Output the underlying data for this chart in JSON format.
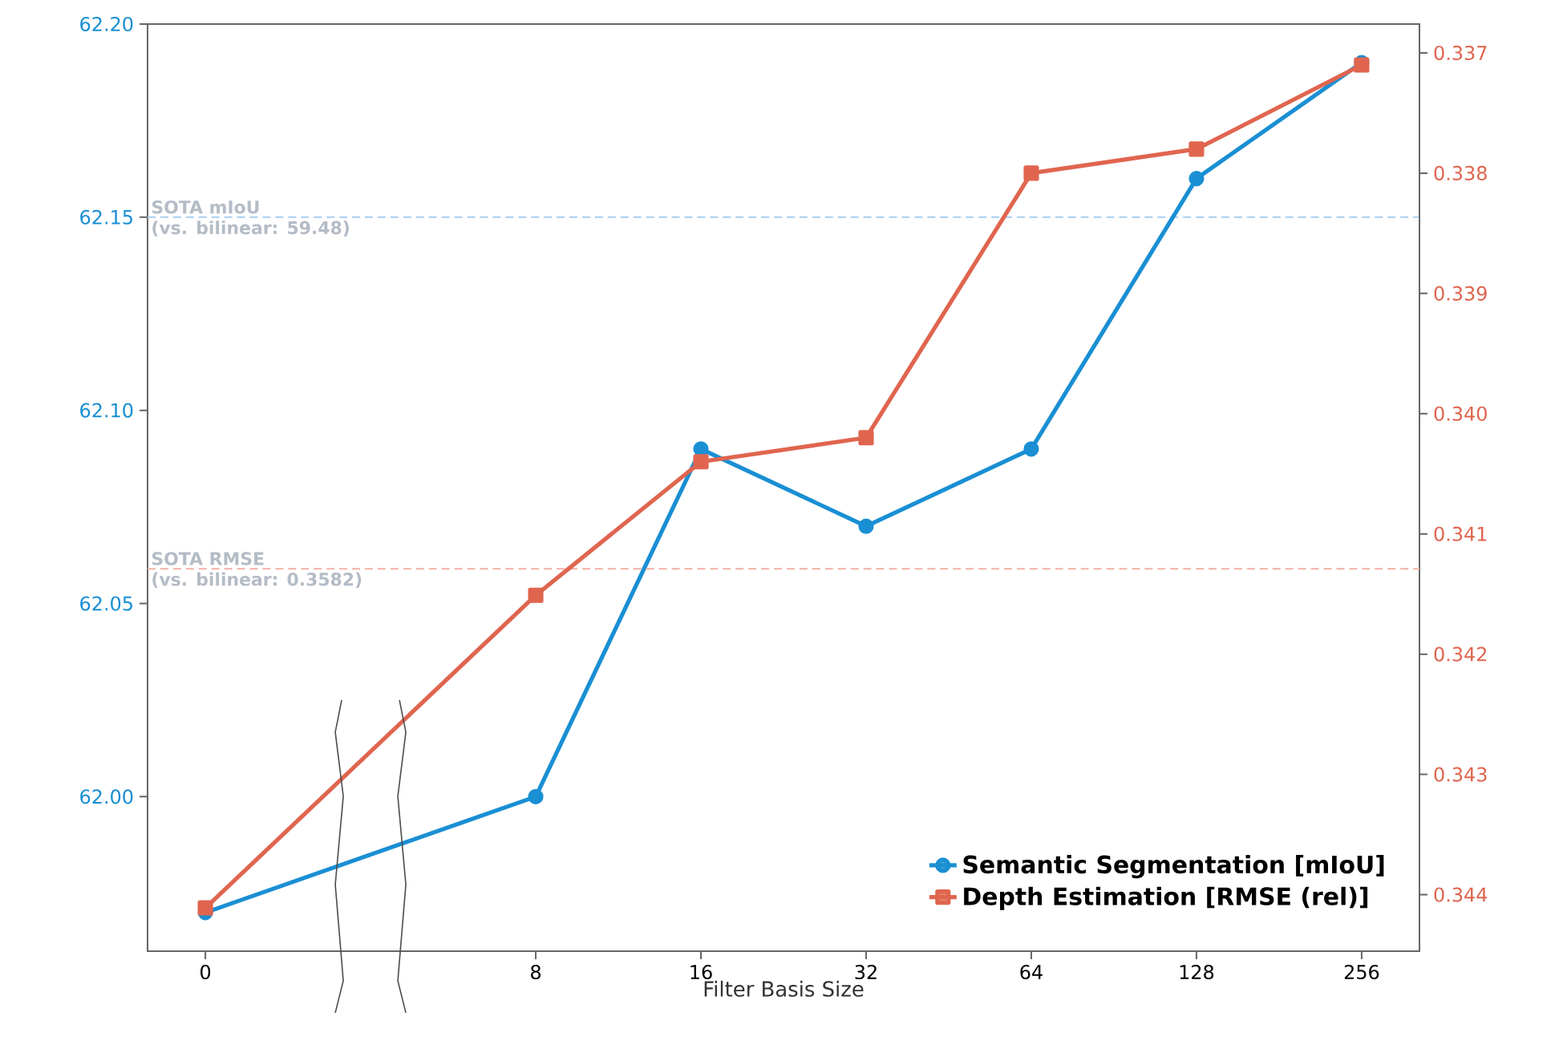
{
  "chart_data": {
    "type": "line",
    "xlabel": "Filter Basis Size",
    "categories": [
      "0",
      null,
      "8",
      "16",
      "32",
      "64",
      "128",
      "256"
    ],
    "series": [
      {
        "name": "Semantic Segmentation [mIoU]",
        "color": "#1a8fd3",
        "marker": "circle",
        "values": [
          61.97,
          null,
          62.0,
          62.09,
          62.07,
          62.09,
          62.16,
          62.19
        ]
      },
      {
        "name": "Depth Estimation  [RMSE (rel)]",
        "color": "#e0654f",
        "marker": "square",
        "axis": "y2",
        "values": [
          0.34411,
          null,
          0.34151,
          0.3404,
          0.3402,
          0.338,
          0.3378,
          0.3371
        ]
      }
    ],
    "ylim": [
      61.96,
      62.2
    ],
    "yticks": [
      {
        "value": 62.0,
        "label": "62.00"
      },
      {
        "value": 62.05,
        "label": "62.05"
      },
      {
        "value": 62.1,
        "label": "62.10"
      },
      {
        "value": 62.15,
        "label": "62.15"
      },
      {
        "value": 62.2,
        "label": "62.20"
      }
    ],
    "y2lim": [
      0.34447,
      0.33676
    ],
    "y2ticks": [
      0.337,
      0.338,
      0.339,
      {
        "value": 0.34,
        "label": "0.340"
      },
      0.341,
      0.342,
      0.343,
      0.344
    ],
    "ref_lines": [
      {
        "axis": "y",
        "value": 62.15,
        "label": "SOTA mIoU",
        "color": "#a8cdf0",
        "line_style": "dashed"
      },
      {
        "axis": "y2",
        "value": 0.34129,
        "label": "SOTA RMSE",
        "color": "#f2b0a6",
        "line_style": "dashed"
      }
    ],
    "annotations": [
      "(vs. bilinear: 59.48)",
      "(vs. bilinear: 0.3582)"
    ],
    "legend": "bottom right",
    "grid": false,
    "line_style": "solid"
  }
}
